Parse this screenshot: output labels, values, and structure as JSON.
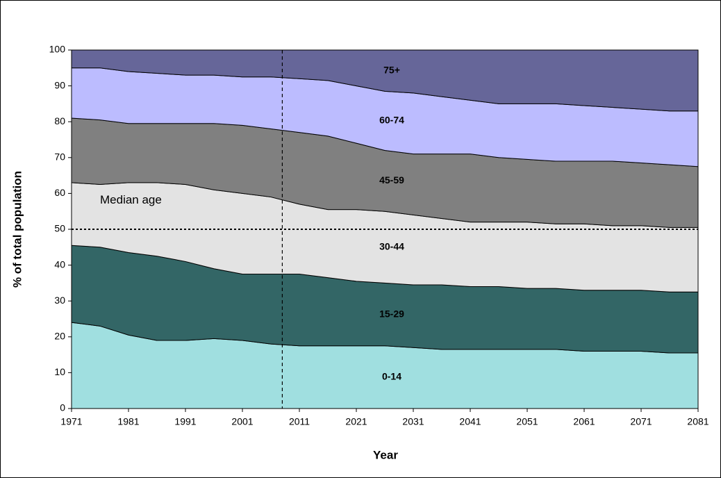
{
  "chart_data": {
    "type": "stacked_area",
    "xlabel": "Year",
    "ylabel": "% of total population",
    "x": [
      1971,
      1976,
      1981,
      1986,
      1991,
      1996,
      2001,
      2006,
      2011,
      2016,
      2021,
      2026,
      2031,
      2036,
      2041,
      2046,
      2051,
      2056,
      2061,
      2066,
      2071,
      2076,
      2081
    ],
    "series": [
      {
        "name": "0-14",
        "color": "#a0dfe0",
        "values": [
          24,
          23,
          20.5,
          19,
          19,
          19.5,
          19,
          18,
          17.5,
          17.5,
          17.5,
          17.5,
          17,
          16.5,
          16.5,
          16.5,
          16.5,
          16.5,
          16,
          16,
          16,
          15.5,
          15.5
        ]
      },
      {
        "name": "15-29",
        "color": "#336666",
        "values": [
          21.5,
          22,
          23,
          23.5,
          22,
          19.5,
          18.5,
          19.5,
          20,
          19,
          18,
          17.5,
          17.5,
          18,
          17.5,
          17.5,
          17,
          17,
          17,
          17,
          17,
          17,
          17
        ]
      },
      {
        "name": "30-44",
        "color": "#e3e3e3",
        "values": [
          17.5,
          17.5,
          19.5,
          20.5,
          21.5,
          22,
          22.5,
          21.5,
          19.5,
          19,
          20,
          20,
          19.5,
          18.5,
          18,
          18,
          18.5,
          18,
          18.5,
          18,
          18,
          18,
          18
        ]
      },
      {
        "name": "45-59",
        "color": "#808080",
        "values": [
          18,
          18,
          16.5,
          16.5,
          17,
          18.5,
          19,
          19,
          20,
          20.5,
          18.5,
          17,
          17,
          18,
          19,
          18,
          17.5,
          17.5,
          17.5,
          18,
          17.5,
          17.5,
          17
        ]
      },
      {
        "name": "60-74",
        "color": "#bcbcff",
        "values": [
          14,
          14.5,
          14.5,
          14,
          13.5,
          13.5,
          13.5,
          14.5,
          15,
          15.5,
          16,
          16.5,
          17,
          16,
          15,
          15,
          15.5,
          16,
          15.5,
          15,
          15,
          15,
          15.5
        ]
      },
      {
        "name": "75+",
        "color": "#666699",
        "values": [
          5,
          5,
          6,
          6.5,
          7,
          7,
          7.5,
          7.5,
          8,
          8.5,
          10,
          11.5,
          12,
          13,
          14,
          15,
          15,
          15,
          15.5,
          16,
          16.5,
          17,
          17
        ]
      }
    ],
    "xlim": [
      1971,
      2081
    ],
    "xticks": [
      1971,
      1981,
      1991,
      2001,
      2011,
      2021,
      2031,
      2041,
      2051,
      2061,
      2071,
      2081
    ],
    "ylim": [
      0,
      100
    ],
    "yticks": [
      0,
      10,
      20,
      30,
      40,
      50,
      60,
      70,
      80,
      90,
      100
    ],
    "annotation": {
      "text": "Median age",
      "x": 1976,
      "y": 58
    },
    "vline": 2008,
    "hline": 50
  }
}
